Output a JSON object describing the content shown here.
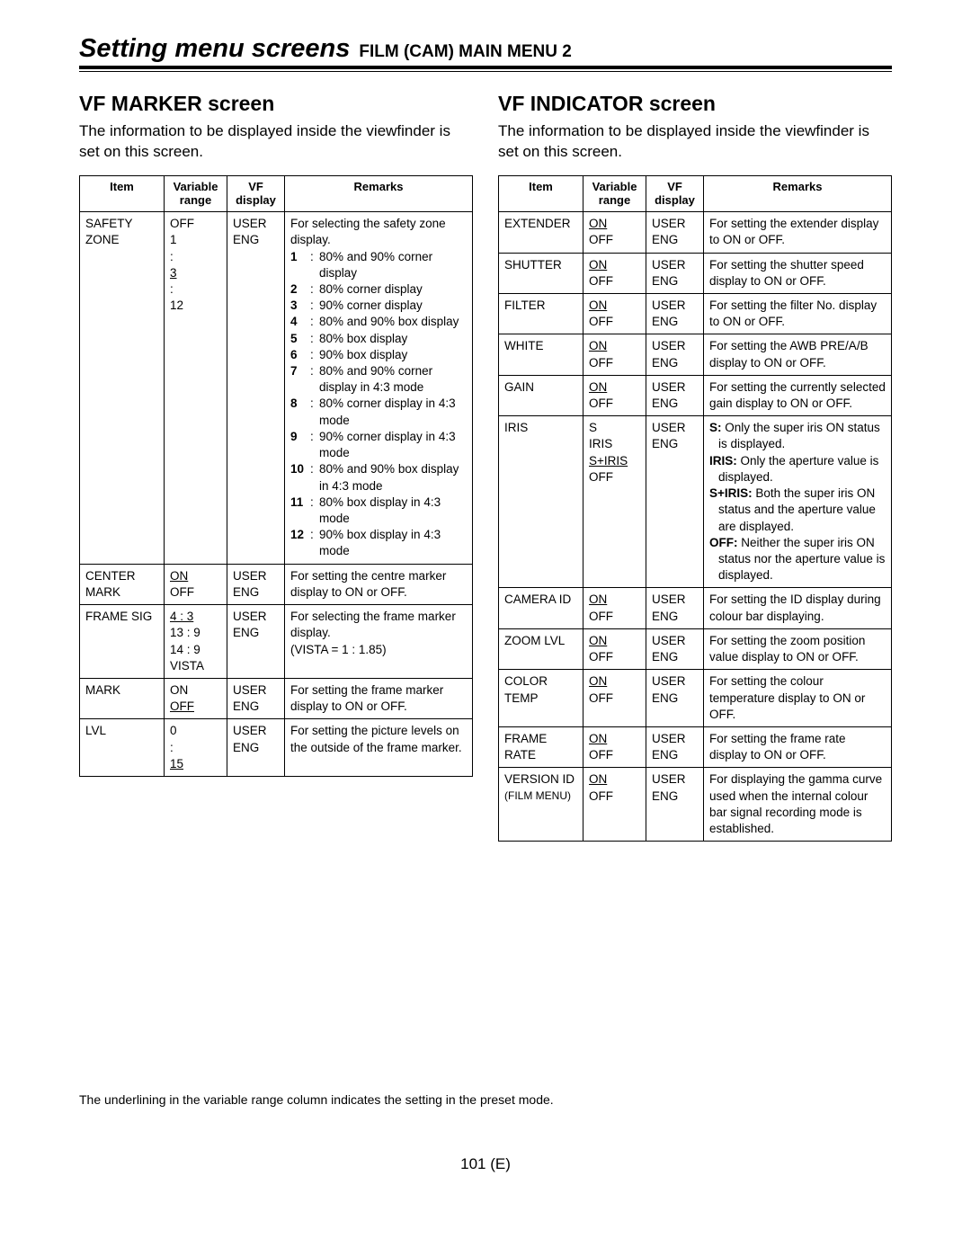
{
  "header": {
    "title": "Setting menu screens",
    "subtitle": "FILM (CAM) MAIN MENU 2"
  },
  "footnote": "The underlining in the variable range column indicates the setting in the preset mode.",
  "pagenum": "101 (E)",
  "left": {
    "heading": "VF MARKER screen",
    "intro": "The information to be displayed inside the viewfinder is set on this screen.",
    "thead": {
      "item": "Item",
      "var": "Variable range",
      "vf": "VF display",
      "rem": "Remarks"
    },
    "rows": [
      {
        "item": "SAFETY ZONE",
        "varLines": [
          {
            "t": "OFF"
          },
          {
            "t": "1"
          },
          {
            "t": ":"
          },
          {
            "t": "3",
            "u": true
          },
          {
            "t": ":"
          },
          {
            "t": "12"
          }
        ],
        "vf": [
          "USER",
          "ENG"
        ],
        "remIntro": "For selecting the safety zone display.",
        "remList": [
          {
            "n": "1",
            "t": "80% and 90% corner display"
          },
          {
            "n": "2",
            "t": "80% corner display"
          },
          {
            "n": "3",
            "t": "90% corner display"
          },
          {
            "n": "4",
            "t": "80% and 90% box display"
          },
          {
            "n": "5",
            "t": "80% box display"
          },
          {
            "n": "6",
            "t": "90% box display"
          },
          {
            "n": "7",
            "t": "80% and 90% corner display in 4:3 mode"
          },
          {
            "n": "8",
            "t": "80% corner display in 4:3 mode"
          },
          {
            "n": "9",
            "t": "90% corner display in 4:3 mode"
          },
          {
            "n": "10",
            "t": "80% and 90% box display in 4:3 mode"
          },
          {
            "n": "11",
            "t": "80% box display in 4:3 mode"
          },
          {
            "n": "12",
            "t": "90% box display in 4:3 mode"
          }
        ]
      },
      {
        "item": "CENTER MARK",
        "varLines": [
          {
            "t": "ON",
            "u": true
          },
          {
            "t": "OFF"
          }
        ],
        "vf": [
          "USER",
          "ENG"
        ],
        "rem": "For setting the centre marker display to ON or OFF."
      },
      {
        "item": "FRAME  SIG",
        "varLines": [
          {
            "t": "4 : 3",
            "u": true
          },
          {
            "t": "13 : 9"
          },
          {
            "t": "14 : 9"
          },
          {
            "t": "VISTA"
          }
        ],
        "vf": [
          "USER",
          "ENG"
        ],
        "rem": "For selecting the frame marker display.\n(VISTA = 1 : 1.85)"
      },
      {
        "item": "MARK",
        "itemAlign": "right",
        "varLines": [
          {
            "t": "ON"
          },
          {
            "t": "OFF",
            "u": true
          }
        ],
        "vf": [
          "USER",
          "ENG"
        ],
        "rem": "For setting the frame marker display to ON or OFF."
      },
      {
        "item": "LVL",
        "itemAlign": "right",
        "varLines": [
          {
            "t": "0"
          },
          {
            "t": ":"
          },
          {
            "t": "15",
            "u": true
          }
        ],
        "vf": [
          "USER",
          "ENG"
        ],
        "rem": "For setting the picture levels on the outside of the frame marker."
      }
    ]
  },
  "right": {
    "heading": "VF INDICATOR screen",
    "intro": "The information to be displayed inside the viewfinder is set on this screen.",
    "thead": {
      "item": "Item",
      "var": "Variable range",
      "vf": "VF display",
      "rem": "Remarks"
    },
    "rows": [
      {
        "item": "EXTENDER",
        "varLines": [
          {
            "t": "ON",
            "u": true
          },
          {
            "t": "OFF"
          }
        ],
        "vf": [
          "USER",
          "ENG"
        ],
        "rem": "For setting the extender display to ON or OFF."
      },
      {
        "item": "SHUTTER",
        "varLines": [
          {
            "t": "ON",
            "u": true
          },
          {
            "t": "OFF"
          }
        ],
        "vf": [
          "USER",
          "ENG"
        ],
        "rem": "For setting the shutter speed display to ON or OFF."
      },
      {
        "item": "FILTER",
        "varLines": [
          {
            "t": "ON",
            "u": true
          },
          {
            "t": "OFF"
          }
        ],
        "vf": [
          "USER",
          "ENG"
        ],
        "rem": "For setting the filter No. display to ON or OFF."
      },
      {
        "item": "WHITE",
        "varLines": [
          {
            "t": "ON",
            "u": true
          },
          {
            "t": "OFF"
          }
        ],
        "vf": [
          "USER",
          "ENG"
        ],
        "rem": "For setting the AWB PRE/A/B display to ON or OFF."
      },
      {
        "item": "GAIN",
        "varLines": [
          {
            "t": "ON",
            "u": true
          },
          {
            "t": "OFF"
          }
        ],
        "vf": [
          "USER",
          "ENG"
        ],
        "rem": "For setting the currently selected gain display to ON or OFF."
      },
      {
        "item": "IRIS",
        "varLines": [
          {
            "t": "S"
          },
          {
            "t": "IRIS"
          },
          {
            "t": "S+IRIS",
            "u": true
          },
          {
            "t": "OFF"
          }
        ],
        "vf": [
          "USER",
          "ENG"
        ],
        "remParts": [
          {
            "b": "S:",
            "t": " Only the super iris ON status is displayed."
          },
          {
            "b": "IRIS:",
            "t": " Only the aperture value is displayed."
          },
          {
            "b": "S+IRIS:",
            "t": " Both the super iris ON status and the aperture value are displayed."
          },
          {
            "b": "OFF:",
            "t": " Neither the super iris ON status nor the aperture value is displayed."
          }
        ]
      },
      {
        "item": "CAMERA ID",
        "varLines": [
          {
            "t": "ON",
            "u": true
          },
          {
            "t": "OFF"
          }
        ],
        "vf": [
          "USER",
          "ENG"
        ],
        "rem": "For setting the ID display during colour bar displaying."
      },
      {
        "item": "ZOOM LVL",
        "varLines": [
          {
            "t": "ON",
            "u": true
          },
          {
            "t": "OFF"
          }
        ],
        "vf": [
          "USER",
          "ENG"
        ],
        "rem": "For setting the zoom position value display to ON or OFF."
      },
      {
        "item": "COLOR TEMP",
        "varLines": [
          {
            "t": "ON",
            "u": true
          },
          {
            "t": "OFF"
          }
        ],
        "vf": [
          "USER",
          "ENG"
        ],
        "rem": "For setting the colour temperature display to ON or OFF."
      },
      {
        "item": "FRAME RATE",
        "varLines": [
          {
            "t": "ON",
            "u": true
          },
          {
            "t": "OFF"
          }
        ],
        "vf": [
          "USER",
          "ENG"
        ],
        "rem": "For setting the frame rate display to ON or OFF."
      },
      {
        "item": "VERSION ID",
        "itemSub": "(FILM MENU)",
        "varLines": [
          {
            "t": "ON",
            "u": true
          },
          {
            "t": "OFF"
          }
        ],
        "vf": [
          "USER",
          "ENG"
        ],
        "rem": "For displaying the gamma curve used when the internal colour bar signal recording mode is established."
      }
    ]
  }
}
